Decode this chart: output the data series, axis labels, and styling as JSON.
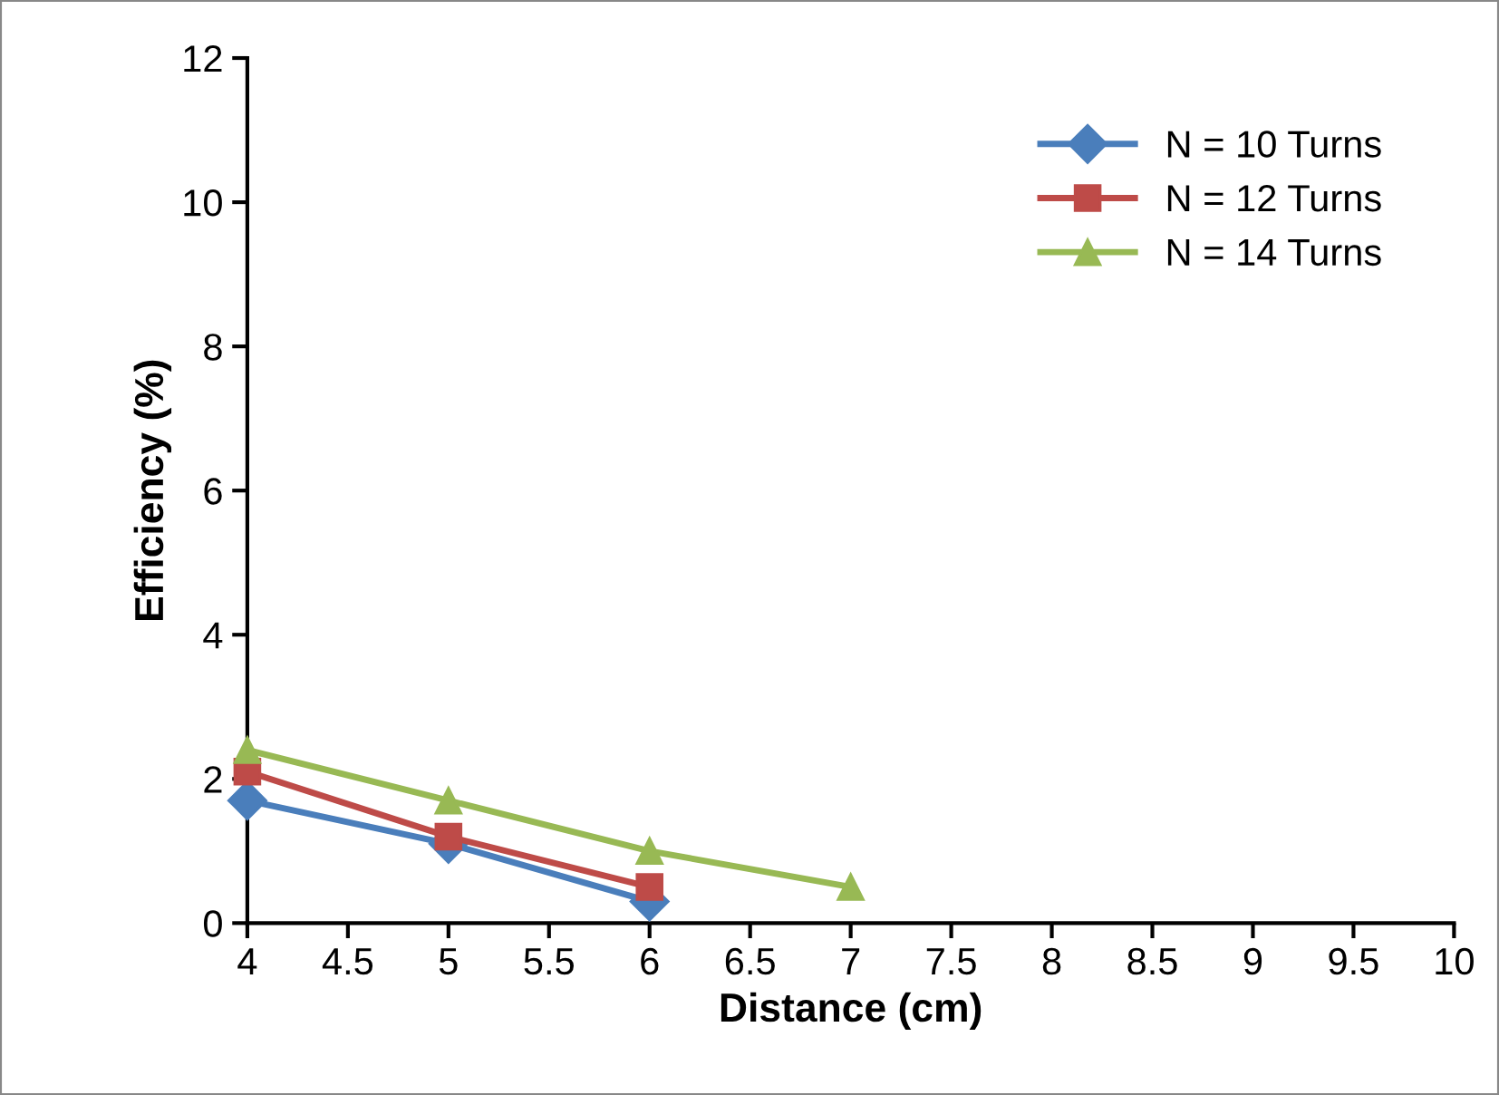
{
  "chart_data": {
    "type": "line",
    "xlabel": "Distance (cm)",
    "ylabel": "Efficiency (%)",
    "xlim": [
      4,
      10
    ],
    "xticks": [
      4,
      4.5,
      5,
      5.5,
      6,
      6.5,
      7,
      7.5,
      8,
      8.5,
      9,
      9.5,
      10
    ],
    "ylim": [
      0,
      12
    ],
    "yticks": [
      0,
      2,
      4,
      6,
      8,
      10,
      12
    ],
    "grid": false,
    "legend": "top right",
    "line_style": "solid",
    "series": [
      {
        "name": "N = 10 Turns",
        "color": "#4a7ebb",
        "marker": "diamond",
        "x": [
          4,
          5,
          6
        ],
        "values": [
          1.7,
          1.1,
          0.3
        ]
      },
      {
        "name": "N = 12 Turns",
        "color": "#be4b48",
        "marker": "square",
        "x": [
          4,
          5,
          6
        ],
        "values": [
          2.1,
          1.2,
          0.5
        ]
      },
      {
        "name": "N = 14 Turns",
        "color": "#98b954",
        "marker": "triangle",
        "x": [
          4,
          5,
          6,
          7
        ],
        "values": [
          2.4,
          1.7,
          1.0,
          0.5
        ]
      }
    ]
  }
}
